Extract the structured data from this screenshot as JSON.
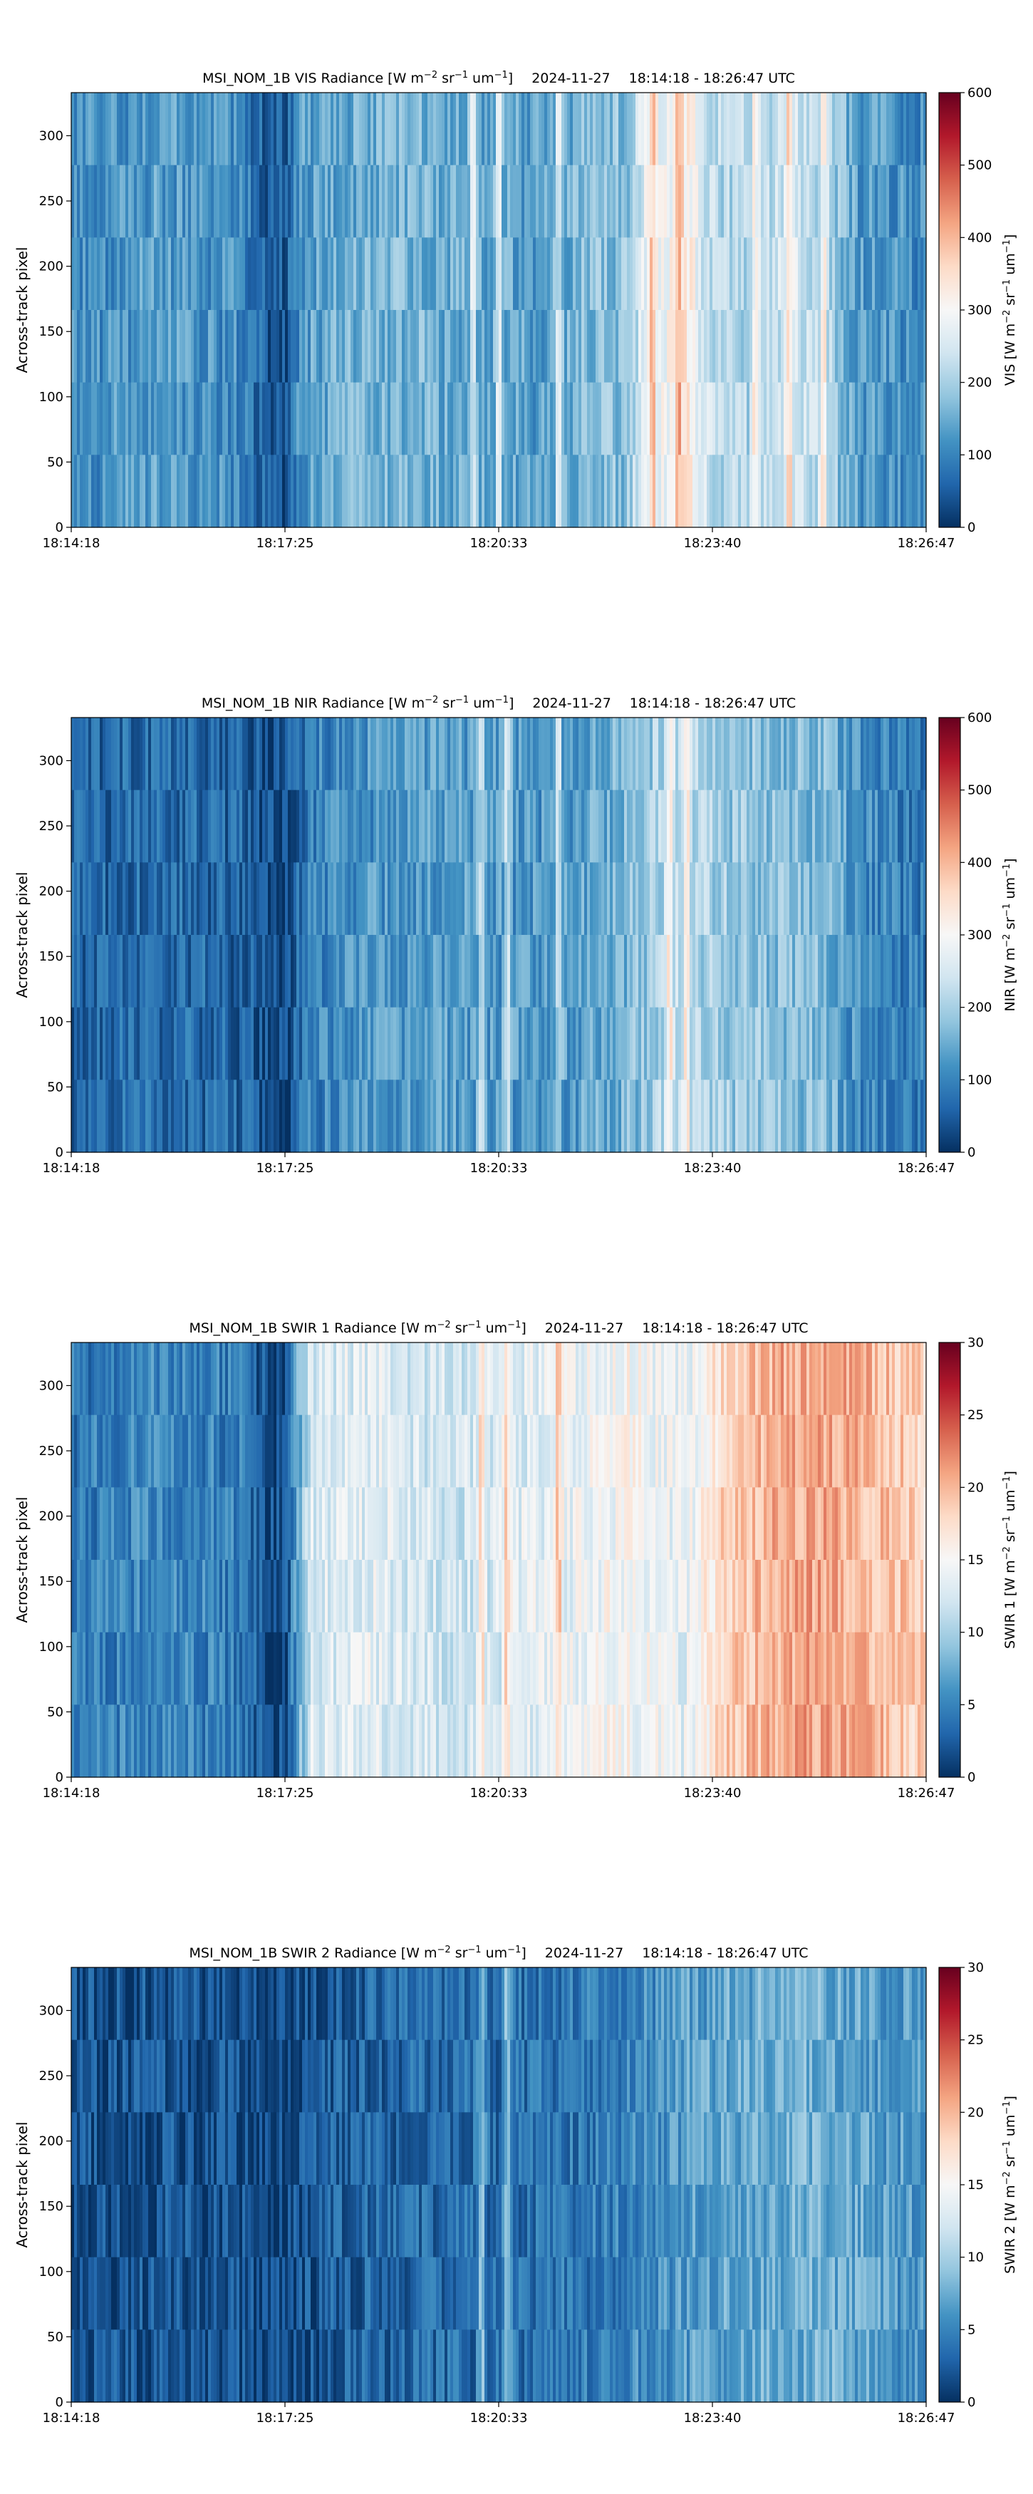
{
  "chart_data": [
    {
      "type": "heatmap",
      "product": "MSI_NOM_1B",
      "band": "VIS",
      "title_main": "MSI_NOM_1B VIS Radiance [W m",
      "title_parts": [
        "−2",
        " sr",
        "−1",
        " um",
        "−1",
        "]"
      ],
      "title_date": "2024-11-27",
      "title_range": "18:14:18 - 18:26:47 UTC",
      "ylabel": "Across-track pixel",
      "x_ticks": [
        "18:14:18",
        "18:17:25",
        "18:20:33",
        "18:23:40",
        "18:26:47"
      ],
      "y_ticks": [
        0,
        50,
        100,
        150,
        200,
        250,
        300
      ],
      "ylim": [
        0,
        333
      ],
      "colorbar_label_prefix": "VIS [W m",
      "colorbar_ticks": [
        0,
        100,
        200,
        300,
        400,
        500,
        600
      ],
      "vmin": 0,
      "vmax": 600,
      "colormap": "RdBu_r",
      "profile": [
        [
          0.0,
          0.18
        ],
        [
          0.05,
          0.2
        ],
        [
          0.1,
          0.22
        ],
        [
          0.15,
          0.2
        ],
        [
          0.2,
          0.18
        ],
        [
          0.23,
          0.08
        ],
        [
          0.25,
          0.07
        ],
        [
          0.27,
          0.22
        ],
        [
          0.32,
          0.25
        ],
        [
          0.36,
          0.26
        ],
        [
          0.4,
          0.28
        ],
        [
          0.45,
          0.25
        ],
        [
          0.5,
          0.24
        ],
        [
          0.55,
          0.22
        ],
        [
          0.6,
          0.28
        ],
        [
          0.65,
          0.3
        ],
        [
          0.67,
          0.45
        ],
        [
          0.7,
          0.5
        ],
        [
          0.72,
          0.55
        ],
        [
          0.74,
          0.4
        ],
        [
          0.76,
          0.36
        ],
        [
          0.8,
          0.35
        ],
        [
          0.84,
          0.42
        ],
        [
          0.88,
          0.36
        ],
        [
          0.92,
          0.22
        ],
        [
          1.0,
          0.18
        ]
      ],
      "bright_columns": [
        0.47,
        0.5,
        0.57,
        0.68,
        0.71,
        0.8,
        0.84,
        0.88
      ]
    },
    {
      "type": "heatmap",
      "product": "MSI_NOM_1B",
      "band": "NIR",
      "title_main": "MSI_NOM_1B NIR Radiance [W m",
      "title_parts": [
        "−2",
        " sr",
        "−1",
        " um",
        "−1",
        "]"
      ],
      "title_date": "2024-11-27",
      "title_range": "18:14:18 - 18:26:47 UTC",
      "ylabel": "Across-track pixel",
      "x_ticks": [
        "18:14:18",
        "18:17:25",
        "18:20:33",
        "18:23:40",
        "18:26:47"
      ],
      "y_ticks": [
        0,
        50,
        100,
        150,
        200,
        250,
        300
      ],
      "ylim": [
        0,
        333
      ],
      "colorbar_label_prefix": "NIR [W m",
      "colorbar_ticks": [
        0,
        100,
        200,
        300,
        400,
        500,
        600
      ],
      "vmin": 0,
      "vmax": 600,
      "colormap": "RdBu_r",
      "profile": [
        [
          0.0,
          0.1
        ],
        [
          0.1,
          0.12
        ],
        [
          0.2,
          0.1
        ],
        [
          0.23,
          0.05
        ],
        [
          0.25,
          0.05
        ],
        [
          0.28,
          0.16
        ],
        [
          0.35,
          0.2
        ],
        [
          0.45,
          0.22
        ],
        [
          0.55,
          0.2
        ],
        [
          0.62,
          0.24
        ],
        [
          0.67,
          0.3
        ],
        [
          0.7,
          0.38
        ],
        [
          0.74,
          0.34
        ],
        [
          0.8,
          0.3
        ],
        [
          0.88,
          0.28
        ],
        [
          0.92,
          0.18
        ],
        [
          1.0,
          0.14
        ]
      ],
      "bright_columns": [
        0.48,
        0.51,
        0.57,
        0.7,
        0.72
      ]
    },
    {
      "type": "heatmap",
      "product": "MSI_NOM_1B",
      "band": "SWIR 1",
      "title_main": "MSI_NOM_1B SWIR 1 Radiance [W m",
      "title_parts": [
        "−2",
        " sr",
        "−1",
        " um",
        "−1",
        "]"
      ],
      "title_date": "2024-11-27",
      "title_range": "18:14:18 - 18:26:47 UTC",
      "ylabel": "Across-track pixel",
      "x_ticks": [
        "18:14:18",
        "18:17:25",
        "18:20:33",
        "18:23:40",
        "18:26:47"
      ],
      "y_ticks": [
        0,
        50,
        100,
        150,
        200,
        250,
        300
      ],
      "ylim": [
        0,
        333
      ],
      "colorbar_label_prefix": "SWIR 1 [W m",
      "colorbar_ticks": [
        0,
        5,
        10,
        15,
        20,
        25,
        30
      ],
      "vmin": 0,
      "vmax": 30,
      "colormap": "RdBu_r",
      "profile": [
        [
          0.0,
          0.14
        ],
        [
          0.1,
          0.18
        ],
        [
          0.2,
          0.15
        ],
        [
          0.23,
          0.05
        ],
        [
          0.25,
          0.05
        ],
        [
          0.28,
          0.42
        ],
        [
          0.35,
          0.45
        ],
        [
          0.45,
          0.4
        ],
        [
          0.55,
          0.45
        ],
        [
          0.65,
          0.5
        ],
        [
          0.72,
          0.45
        ],
        [
          0.76,
          0.6
        ],
        [
          0.82,
          0.68
        ],
        [
          0.88,
          0.7
        ],
        [
          0.94,
          0.66
        ],
        [
          1.0,
          0.6
        ]
      ],
      "bright_columns": [
        0.48,
        0.51,
        0.57
      ]
    },
    {
      "type": "heatmap",
      "product": "MSI_NOM_1B",
      "band": "SWIR 2",
      "title_main": "MSI_NOM_1B SWIR 2 Radiance [W m",
      "title_parts": [
        "−2",
        " sr",
        "−1",
        " um",
        "−1",
        "]"
      ],
      "title_date": "2024-11-27",
      "title_range": "18:14:18 - 18:26:47 UTC",
      "ylabel": "Across-track pixel",
      "x_ticks": [
        "18:14:18",
        "18:17:25",
        "18:20:33",
        "18:23:40",
        "18:26:47"
      ],
      "y_ticks": [
        0,
        50,
        100,
        150,
        200,
        250,
        300
      ],
      "ylim": [
        0,
        333
      ],
      "colorbar_label_prefix": "SWIR 2 [W m",
      "colorbar_ticks": [
        0,
        5,
        10,
        15,
        20,
        25,
        30
      ],
      "vmin": 0,
      "vmax": 30,
      "colormap": "RdBu_r",
      "profile": [
        [
          0.0,
          0.06
        ],
        [
          0.1,
          0.07
        ],
        [
          0.2,
          0.06
        ],
        [
          0.23,
          0.03
        ],
        [
          0.25,
          0.04
        ],
        [
          0.3,
          0.09
        ],
        [
          0.4,
          0.11
        ],
        [
          0.5,
          0.12
        ],
        [
          0.6,
          0.14
        ],
        [
          0.65,
          0.17
        ],
        [
          0.72,
          0.22
        ],
        [
          0.8,
          0.25
        ],
        [
          0.88,
          0.26
        ],
        [
          0.94,
          0.22
        ],
        [
          1.0,
          0.2
        ]
      ],
      "bright_columns": [
        0.48,
        0.51
      ]
    }
  ]
}
